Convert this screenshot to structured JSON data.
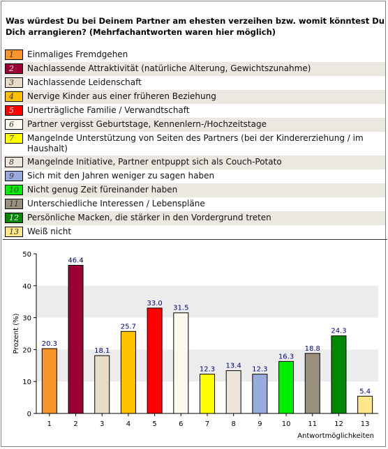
{
  "question": "Was würdest Du bei Deinem Partner am ehesten verzeihen bzw. womit könntest Du Dich arrangieren? (Mehrfachantworten waren hier möglich)",
  "legend": [
    {
      "num": "1",
      "label": "Einmaliges Fremdgehen",
      "color": "#f7952a"
    },
    {
      "num": "2",
      "label": "Nachlassende Attraktivität (natürliche Alterung, Gewichtszunahme)",
      "color": "#9a0033"
    },
    {
      "num": "3",
      "label": "Nachlassende Leidenschaft",
      "color": "#e8dcc6"
    },
    {
      "num": "4",
      "label": "Nervige Kinder aus einer früheren Beziehung",
      "color": "#ffc100"
    },
    {
      "num": "5",
      "label": "Unerträgliche Familie / Verwandtschaft",
      "color": "#ff0000"
    },
    {
      "num": "6",
      "label": "Partner vergisst Geburtstage, Kennenlern-/Hochzeitstage",
      "color": "#fbf8ee"
    },
    {
      "num": "7",
      "label": "Mangelnde Unterstützung von Seiten des Partners (bei der Kindererziehung / im Haushalt)",
      "color": "#ffff00"
    },
    {
      "num": "8",
      "label": "Mangelnde Initiative, Partner entpuppt sich als Couch-Potato",
      "color": "#ece6dc"
    },
    {
      "num": "9",
      "label": "Sich mit den Jahren weniger zu sagen haben",
      "color": "#99aadd"
    },
    {
      "num": "10",
      "label": "Nicht genug Zeit füreinander haben",
      "color": "#00ee00"
    },
    {
      "num": "11",
      "label": "Unterschiedliche Interessen / Lebenspläne",
      "color": "#999080"
    },
    {
      "num": "12",
      "label": "Persönliche Macken, die stärker in den Vordergrund treten",
      "color": "#008800"
    },
    {
      "num": "13",
      "label": "Weiß nicht",
      "color": "#ffe88a"
    }
  ],
  "chart_data": {
    "type": "bar",
    "categories": [
      "1",
      "2",
      "3",
      "4",
      "5",
      "6",
      "7",
      "8",
      "9",
      "10",
      "11",
      "12",
      "13"
    ],
    "values": [
      20.3,
      46.4,
      18.1,
      25.7,
      33.0,
      31.5,
      12.3,
      13.4,
      12.3,
      16.3,
      18.8,
      24.3,
      5.4
    ],
    "value_labels": [
      "20.3",
      "46.4",
      "18.1",
      "25.7",
      "33.0",
      "31.5",
      "12.3",
      "13.4",
      "12.3",
      "16.3",
      "18.8",
      "24.3",
      "5.4"
    ],
    "colors": [
      "#f7952a",
      "#9a0033",
      "#e8dcc6",
      "#ffc100",
      "#ff0000",
      "#fbf8ee",
      "#ffff00",
      "#ece6dc",
      "#99aadd",
      "#00ee00",
      "#999080",
      "#008800",
      "#ffe88a"
    ],
    "ylabel": "Prozent (%)",
    "xlabel": "Antwortmöglichkeiten",
    "ylim": [
      0,
      50
    ],
    "yticks": [
      "0",
      "10",
      "20",
      "30",
      "40",
      "50"
    ],
    "grid": "horizontal bands",
    "value_label_color": "#000080",
    "band_color": "#ececec"
  }
}
